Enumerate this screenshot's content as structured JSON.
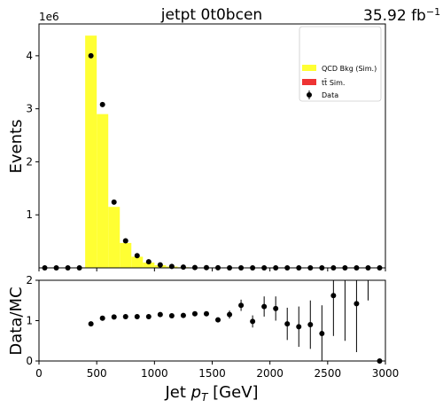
{
  "header": {
    "title": "jetpt  0t0bcen",
    "lumi_value": "35.92 fb",
    "lumi_exp": "−1",
    "multiplier_base": "1e6"
  },
  "axes": {
    "top_ylabel": "Events",
    "bottom_ylabel": "Data/MC",
    "xlabel_main": "Jet ",
    "xlabel_p": "p",
    "xlabel_sub": "T",
    "xlabel_unit": " [GeV]",
    "top_yticks": [
      "1",
      "2",
      "3",
      "4"
    ],
    "bottom_yticks": [
      "0",
      "1",
      "2"
    ],
    "xticks": [
      "0",
      "500",
      "1000",
      "1500",
      "2000",
      "2500",
      "3000"
    ]
  },
  "legend": {
    "qcd": "QCD Bkg (Sim.)",
    "ttbar": "tt̄ Sim.",
    "data": "Data"
  },
  "colors": {
    "qcd": "#ffff33",
    "ttbar": "#ee3333",
    "data": "#000000"
  },
  "chart_data": [
    {
      "type": "bar",
      "title": "jetpt  0t0bcen",
      "ylabel": "Events",
      "xlim": [
        0,
        3000
      ],
      "ylim": [
        0,
        4600000
      ],
      "y_multiplier": 1000000,
      "qcd_bins": [
        {
          "lo": 400,
          "hi": 500,
          "value": 4380000
        },
        {
          "lo": 500,
          "hi": 600,
          "value": 2900000
        },
        {
          "lo": 600,
          "hi": 700,
          "value": 1150000
        },
        {
          "lo": 700,
          "hi": 800,
          "value": 470000
        },
        {
          "lo": 800,
          "hi": 900,
          "value": 210000
        },
        {
          "lo": 900,
          "hi": 1000,
          "value": 100000
        },
        {
          "lo": 1000,
          "hi": 1100,
          "value": 50000
        },
        {
          "lo": 1100,
          "hi": 1200,
          "value": 25000
        },
        {
          "lo": 1200,
          "hi": 1300,
          "value": 12000
        },
        {
          "lo": 1300,
          "hi": 1400,
          "value": 6000
        }
      ],
      "data_points": [
        {
          "x": 50,
          "y": 0
        },
        {
          "x": 150,
          "y": 0
        },
        {
          "x": 250,
          "y": 0
        },
        {
          "x": 350,
          "y": 0
        },
        {
          "x": 450,
          "y": 4000000
        },
        {
          "x": 550,
          "y": 3080000
        },
        {
          "x": 650,
          "y": 1240000
        },
        {
          "x": 750,
          "y": 510000
        },
        {
          "x": 850,
          "y": 230000
        },
        {
          "x": 950,
          "y": 115000
        },
        {
          "x": 1050,
          "y": 57000
        },
        {
          "x": 1150,
          "y": 28000
        },
        {
          "x": 1250,
          "y": 14000
        },
        {
          "x": 1350,
          "y": 7000
        },
        {
          "x": 1450,
          "y": 3500
        },
        {
          "x": 1550,
          "y": 1800
        },
        {
          "x": 1650,
          "y": 900
        },
        {
          "x": 1750,
          "y": 450
        },
        {
          "x": 1850,
          "y": 220
        },
        {
          "x": 1950,
          "y": 110
        },
        {
          "x": 2050,
          "y": 60
        },
        {
          "x": 2150,
          "y": 30
        },
        {
          "x": 2250,
          "y": 15
        },
        {
          "x": 2350,
          "y": 8
        },
        {
          "x": 2450,
          "y": 4
        },
        {
          "x": 2550,
          "y": 2
        },
        {
          "x": 2650,
          "y": 1
        },
        {
          "x": 2750,
          "y": 1
        },
        {
          "x": 2850,
          "y": 0
        },
        {
          "x": 2950,
          "y": 0
        }
      ]
    },
    {
      "type": "scatter",
      "ylabel": "Data/MC",
      "xlabel": "Jet pT [GeV]",
      "xlim": [
        0,
        3000
      ],
      "ylim": [
        0,
        2
      ],
      "ratio_points": [
        {
          "x": 450,
          "y": 0.92,
          "err": 0.0
        },
        {
          "x": 550,
          "y": 1.06,
          "err": 0.0
        },
        {
          "x": 650,
          "y": 1.09,
          "err": 0.0
        },
        {
          "x": 750,
          "y": 1.1,
          "err": 0.0
        },
        {
          "x": 850,
          "y": 1.1,
          "err": 0.0
        },
        {
          "x": 950,
          "y": 1.1,
          "err": 0.02
        },
        {
          "x": 1050,
          "y": 1.15,
          "err": 0.03
        },
        {
          "x": 1150,
          "y": 1.12,
          "err": 0.03
        },
        {
          "x": 1250,
          "y": 1.13,
          "err": 0.04
        },
        {
          "x": 1350,
          "y": 1.17,
          "err": 0.05
        },
        {
          "x": 1450,
          "y": 1.17,
          "err": 0.06
        },
        {
          "x": 1550,
          "y": 1.02,
          "err": 0.06
        },
        {
          "x": 1650,
          "y": 1.15,
          "err": 0.1
        },
        {
          "x": 1750,
          "y": 1.38,
          "err": 0.14
        },
        {
          "x": 1850,
          "y": 0.98,
          "err": 0.15
        },
        {
          "x": 1950,
          "y": 1.35,
          "err": 0.25
        },
        {
          "x": 2050,
          "y": 1.3,
          "err": 0.3
        },
        {
          "x": 2150,
          "y": 0.92,
          "err": 0.4
        },
        {
          "x": 2250,
          "y": 0.85,
          "err": 0.5
        },
        {
          "x": 2350,
          "y": 0.9,
          "err": 0.6
        },
        {
          "x": 2450,
          "y": 0.68,
          "err": 0.7
        },
        {
          "x": 2550,
          "y": 1.62,
          "err": 1.0
        },
        {
          "x": 2750,
          "y": 1.42,
          "err": 1.2
        },
        {
          "x": 2950,
          "y": 0.0,
          "err": 0.0
        }
      ],
      "extra_error_bars": [
        {
          "x": 2650,
          "lo": 0.5,
          "hi": 2.0
        },
        {
          "x": 2850,
          "lo": 1.5,
          "hi": 2.0
        }
      ]
    }
  ]
}
